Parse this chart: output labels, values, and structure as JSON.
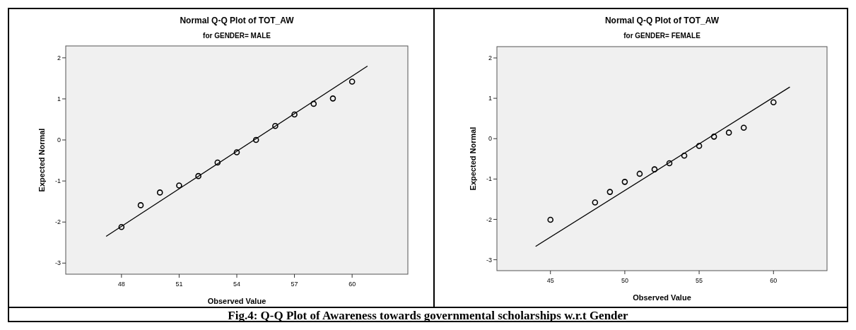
{
  "chart_data": [
    {
      "type": "scatter",
      "title": "Normal Q-Q Plot of TOT_AW",
      "subtitle": "for GENDER= MALE",
      "xlabel": "Observed Value",
      "ylabel": "Expected Normal",
      "xlim": [
        45.1,
        62.9
      ],
      "xticks": [
        48,
        51,
        54,
        57,
        60
      ],
      "ylim": [
        -3.27,
        2.29
      ],
      "yticks": [
        -3,
        -2,
        -1,
        0,
        1,
        2
      ],
      "series": [
        {
          "marker": "circle",
          "color": "#000000",
          "x": [
            48,
            49,
            50,
            51,
            52,
            53,
            54,
            55,
            56,
            57,
            58,
            59,
            60
          ],
          "values": [
            -2.12,
            -1.59,
            -1.28,
            -1.11,
            -0.88,
            -0.55,
            -0.3,
            0.0,
            0.34,
            0.62,
            0.88,
            1.01,
            1.42
          ]
        },
        {
          "type": "line",
          "color": "#000000",
          "x": [
            47.2,
            60.8
          ],
          "values": [
            -2.35,
            1.8
          ]
        }
      ],
      "annotations": [
        "Fig.4: Q-Q Plot of Awareness towards governmental scholarships w.r.t Gender"
      ]
    },
    {
      "type": "scatter",
      "title": "Normal Q-Q Plot of TOT_AW",
      "subtitle": "for GENDER= FEMALE",
      "xlabel": "Observed Value",
      "ylabel": "Expected Normal",
      "xlim": [
        41.4,
        63.6
      ],
      "xticks": [
        45,
        50,
        55,
        60
      ],
      "ylim": [
        -3.27,
        2.28
      ],
      "yticks": [
        -3,
        -2,
        -1,
        0,
        1,
        2
      ],
      "series": [
        {
          "marker": "circle",
          "color": "#000000",
          "x": [
            45,
            48,
            49,
            50,
            51,
            52,
            53,
            54,
            55,
            56,
            57,
            58,
            60
          ],
          "values": [
            -2.01,
            -1.58,
            -1.32,
            -1.07,
            -0.87,
            -0.76,
            -0.61,
            -0.42,
            -0.18,
            0.05,
            0.15,
            0.27,
            0.9
          ]
        },
        {
          "type": "line",
          "color": "#000000",
          "x": [
            44.0,
            61.1
          ],
          "values": [
            -2.67,
            1.28
          ]
        }
      ]
    }
  ]
}
